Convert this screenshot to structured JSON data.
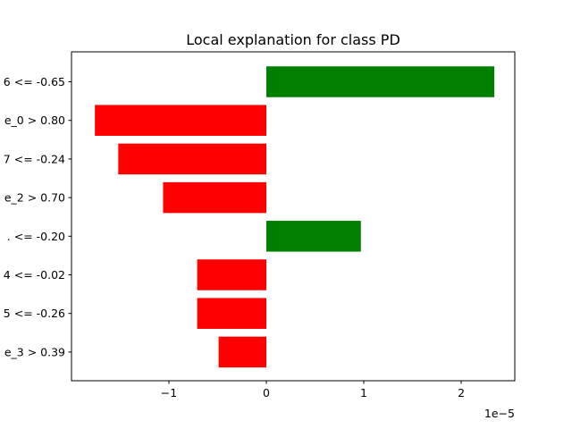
{
  "chart_data": {
    "type": "bar",
    "orientation": "horizontal",
    "title": "Local explanation for class PD",
    "xlabel": "",
    "ylabel": "",
    "x_offset_label": "1e−5",
    "x_scale_multiplier": 1e-05,
    "xlim": [
      -2.0,
      2.55
    ],
    "xticks": [
      -1,
      0,
      1,
      2
    ],
    "xtick_labels": [
      "−1",
      "0",
      "1",
      "2"
    ],
    "categories": [
      "6 <= -0.65",
      "e_0 > 0.80",
      "7 <= -0.24",
      "e_2 > 0.70",
      ". <= -0.20",
      "4 <= -0.02",
      "5 <= -0.26",
      "e_3 > 0.39"
    ],
    "values": [
      2.34,
      -1.76,
      -1.52,
      -1.06,
      0.97,
      -0.71,
      -0.71,
      -0.49
    ],
    "colors": {
      "positive": "#008000",
      "negative": "#ff0000"
    },
    "grid": false,
    "legend": "none"
  }
}
